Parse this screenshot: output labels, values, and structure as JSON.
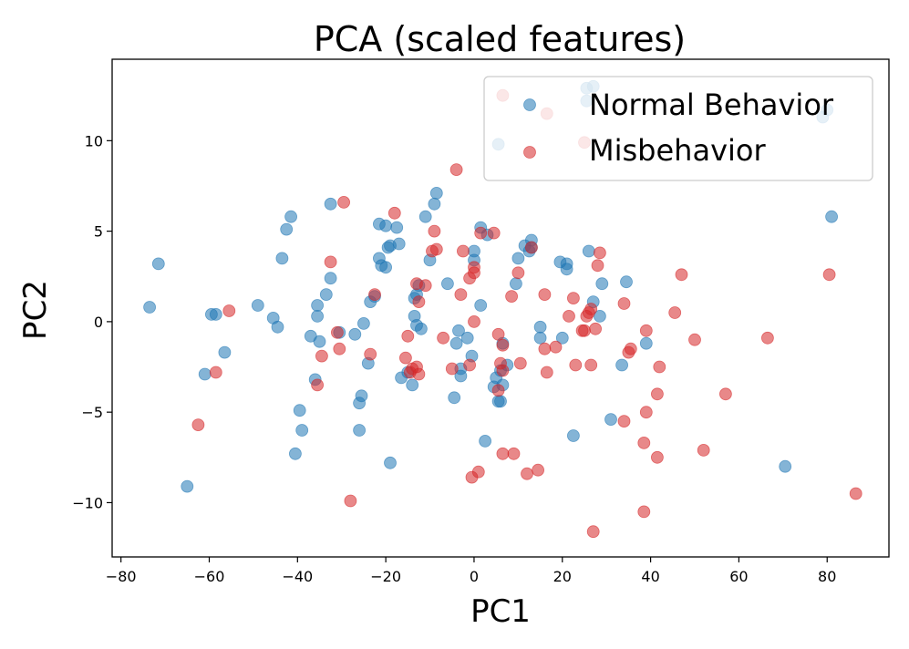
{
  "chart_data": {
    "type": "scatter",
    "title": "PCA (scaled features)",
    "xlabel": "PC1",
    "ylabel": "PC2",
    "xlim": [
      -82,
      94
    ],
    "ylim": [
      -13,
      14.5
    ],
    "xticks": [
      -80,
      -60,
      -40,
      -20,
      0,
      20,
      40,
      60,
      80
    ],
    "yticks": [
      -10,
      -5,
      0,
      5,
      10
    ],
    "grid": false,
    "legend_position": "top-right",
    "series": [
      {
        "name": "Normal Behavior",
        "color": "#1f77b4",
        "points": [
          [
            -73.5,
            0.8
          ],
          [
            -71.5,
            3.2
          ],
          [
            -65,
            -9.1
          ],
          [
            -61,
            -2.9
          ],
          [
            -59.5,
            0.4
          ],
          [
            -58.5,
            0.4
          ],
          [
            -56.5,
            -1.7
          ],
          [
            -49,
            0.9
          ],
          [
            -45.5,
            0.2
          ],
          [
            -44.5,
            -0.3
          ],
          [
            -43.5,
            3.5
          ],
          [
            -42.5,
            5.1
          ],
          [
            -41.5,
            5.8
          ],
          [
            -40.5,
            -7.3
          ],
          [
            -39.5,
            -4.9
          ],
          [
            -39,
            -6
          ],
          [
            -37,
            -0.8
          ],
          [
            -36,
            -3.2
          ],
          [
            -35.5,
            0.9
          ],
          [
            -35.5,
            0.3
          ],
          [
            -35,
            -1.1
          ],
          [
            -33.5,
            1.5
          ],
          [
            -32.5,
            6.5
          ],
          [
            -32.5,
            2.4
          ],
          [
            -30.5,
            -0.6
          ],
          [
            -27,
            -0.7
          ],
          [
            -26,
            -4.5
          ],
          [
            -26,
            -6
          ],
          [
            -25.5,
            -4.1
          ],
          [
            -25,
            -0.1
          ],
          [
            -24,
            -2.3
          ],
          [
            -23.5,
            1.1
          ],
          [
            -22.5,
            1.4
          ],
          [
            -21.5,
            5.4
          ],
          [
            -21.5,
            3.5
          ],
          [
            -21,
            3.1
          ],
          [
            -20,
            5.3
          ],
          [
            -20,
            3
          ],
          [
            -19.5,
            4.1
          ],
          [
            -19,
            4.2
          ],
          [
            -19,
            -7.8
          ],
          [
            -17.5,
            5.2
          ],
          [
            -17,
            4.3
          ],
          [
            -16.5,
            -3.1
          ],
          [
            -15,
            -2.8
          ],
          [
            -14,
            -3.5
          ],
          [
            -13.5,
            1.3
          ],
          [
            -13.5,
            0.3
          ],
          [
            -13,
            -0.2
          ],
          [
            -13,
            1.5
          ],
          [
            -12.5,
            2
          ],
          [
            -12,
            -0.4
          ],
          [
            -11,
            5.8
          ],
          [
            -10,
            3.4
          ],
          [
            -9,
            6.5
          ],
          [
            -8.5,
            7.1
          ],
          [
            -6,
            2.1
          ],
          [
            -4.5,
            -4.2
          ],
          [
            -4,
            -1.2
          ],
          [
            -3.5,
            -0.5
          ],
          [
            -3,
            -2.6
          ],
          [
            -3,
            -3
          ],
          [
            -1.5,
            -0.9
          ],
          [
            -0.5,
            -1.9
          ],
          [
            0,
            3.4
          ],
          [
            0,
            3.9
          ],
          [
            1.5,
            5.2
          ],
          [
            1.5,
            0.9
          ],
          [
            2.5,
            -6.6
          ],
          [
            3,
            4.8
          ],
          [
            4.5,
            -3.6
          ],
          [
            5,
            -3.1
          ],
          [
            5.5,
            -4.4
          ],
          [
            6,
            -4.4
          ],
          [
            6,
            -2.7
          ],
          [
            6.5,
            -3.5
          ],
          [
            6.5,
            -1.2
          ],
          [
            7.5,
            -2.4
          ],
          [
            9.5,
            2.1
          ],
          [
            10,
            3.5
          ],
          [
            11.5,
            4.2
          ],
          [
            12.5,
            3.9
          ],
          [
            13,
            4.5
          ],
          [
            13,
            4.1
          ],
          [
            15,
            -0.3
          ],
          [
            15,
            -0.9
          ],
          [
            19.5,
            3.3
          ],
          [
            20,
            -0.9
          ],
          [
            21,
            2.9
          ],
          [
            21,
            3.2
          ],
          [
            22.5,
            -6.3
          ],
          [
            26,
            3.9
          ],
          [
            27,
            1.1
          ],
          [
            28.5,
            0.3
          ],
          [
            29,
            2.1
          ],
          [
            31,
            -5.4
          ],
          [
            33.5,
            -2.4
          ],
          [
            34.5,
            2.2
          ],
          [
            39,
            -1.2
          ],
          [
            70.5,
            -8
          ],
          [
            81,
            5.8
          ],
          [
            5.5,
            9.8
          ],
          [
            25.5,
            12.2
          ],
          [
            25.5,
            12.9
          ],
          [
            27,
            13
          ],
          [
            79,
            11.3
          ],
          [
            80,
            11.7
          ]
        ]
      },
      {
        "name": "Misbehavior",
        "color": "#d62728",
        "points": [
          [
            -62.5,
            -5.7
          ],
          [
            -58.5,
            -2.8
          ],
          [
            -55.5,
            0.6
          ],
          [
            -35.5,
            -3.5
          ],
          [
            -34.5,
            -1.9
          ],
          [
            -32.5,
            3.3
          ],
          [
            -31,
            -0.6
          ],
          [
            -30.5,
            -1.5
          ],
          [
            -29.5,
            6.6
          ],
          [
            -28,
            -9.9
          ],
          [
            -23.5,
            -1.8
          ],
          [
            -22.5,
            1.5
          ],
          [
            -18,
            6
          ],
          [
            -15.5,
            -2
          ],
          [
            -15,
            -0.8
          ],
          [
            -14.5,
            -2.8
          ],
          [
            -14,
            -2.6
          ],
          [
            -13,
            -2.5
          ],
          [
            -13,
            2.1
          ],
          [
            -12.5,
            1.1
          ],
          [
            -12.5,
            -2.9
          ],
          [
            -11,
            2
          ],
          [
            -9.5,
            3.9
          ],
          [
            -9,
            5
          ],
          [
            -8.5,
            4
          ],
          [
            -7,
            -0.9
          ],
          [
            -5,
            -2.6
          ],
          [
            -4,
            8.4
          ],
          [
            -3,
            1.5
          ],
          [
            -2.5,
            3.9
          ],
          [
            -1,
            -2.4
          ],
          [
            -1,
            2.4
          ],
          [
            -0.5,
            -8.6
          ],
          [
            0,
            0
          ],
          [
            0,
            2.7
          ],
          [
            0,
            3
          ],
          [
            1,
            -8.3
          ],
          [
            1.5,
            4.9
          ],
          [
            4.5,
            4.9
          ],
          [
            5.5,
            -3.8
          ],
          [
            5.5,
            -0.7
          ],
          [
            6,
            -2.3
          ],
          [
            6.5,
            -1.3
          ],
          [
            6.5,
            -2.7
          ],
          [
            6.5,
            -7.3
          ],
          [
            8.5,
            1.4
          ],
          [
            9,
            -7.3
          ],
          [
            10,
            2.7
          ],
          [
            10.5,
            -2.3
          ],
          [
            12,
            -8.4
          ],
          [
            13,
            4.1
          ],
          [
            14.5,
            -8.2
          ],
          [
            16,
            1.5
          ],
          [
            16,
            -1.5
          ],
          [
            16.5,
            -2.8
          ],
          [
            18.5,
            -1.4
          ],
          [
            21.5,
            0.3
          ],
          [
            22.5,
            1.3
          ],
          [
            23,
            -2.4
          ],
          [
            24.5,
            -0.5
          ],
          [
            25,
            -0.5
          ],
          [
            25.5,
            0.3
          ],
          [
            26,
            0.5
          ],
          [
            26.5,
            -2.4
          ],
          [
            26.5,
            0.7
          ],
          [
            27,
            -11.6
          ],
          [
            27.5,
            -0.4
          ],
          [
            28,
            3.1
          ],
          [
            28.5,
            3.8
          ],
          [
            34,
            1
          ],
          [
            34,
            -5.5
          ],
          [
            35,
            -1.7
          ],
          [
            35.5,
            -1.5
          ],
          [
            38.5,
            -6.7
          ],
          [
            38.5,
            -10.5
          ],
          [
            39,
            -0.5
          ],
          [
            39,
            -5
          ],
          [
            41.5,
            -4
          ],
          [
            41.5,
            -7.5
          ],
          [
            42,
            -2.5
          ],
          [
            45.5,
            0.5
          ],
          [
            47,
            2.6
          ],
          [
            50,
            -1
          ],
          [
            52,
            -7.1
          ],
          [
            57,
            -4
          ],
          [
            66.5,
            -0.9
          ],
          [
            80.5,
            2.6
          ],
          [
            86.5,
            -9.5
          ],
          [
            6.5,
            12.5
          ],
          [
            16.5,
            11.5
          ],
          [
            25,
            9.9
          ]
        ]
      }
    ]
  }
}
